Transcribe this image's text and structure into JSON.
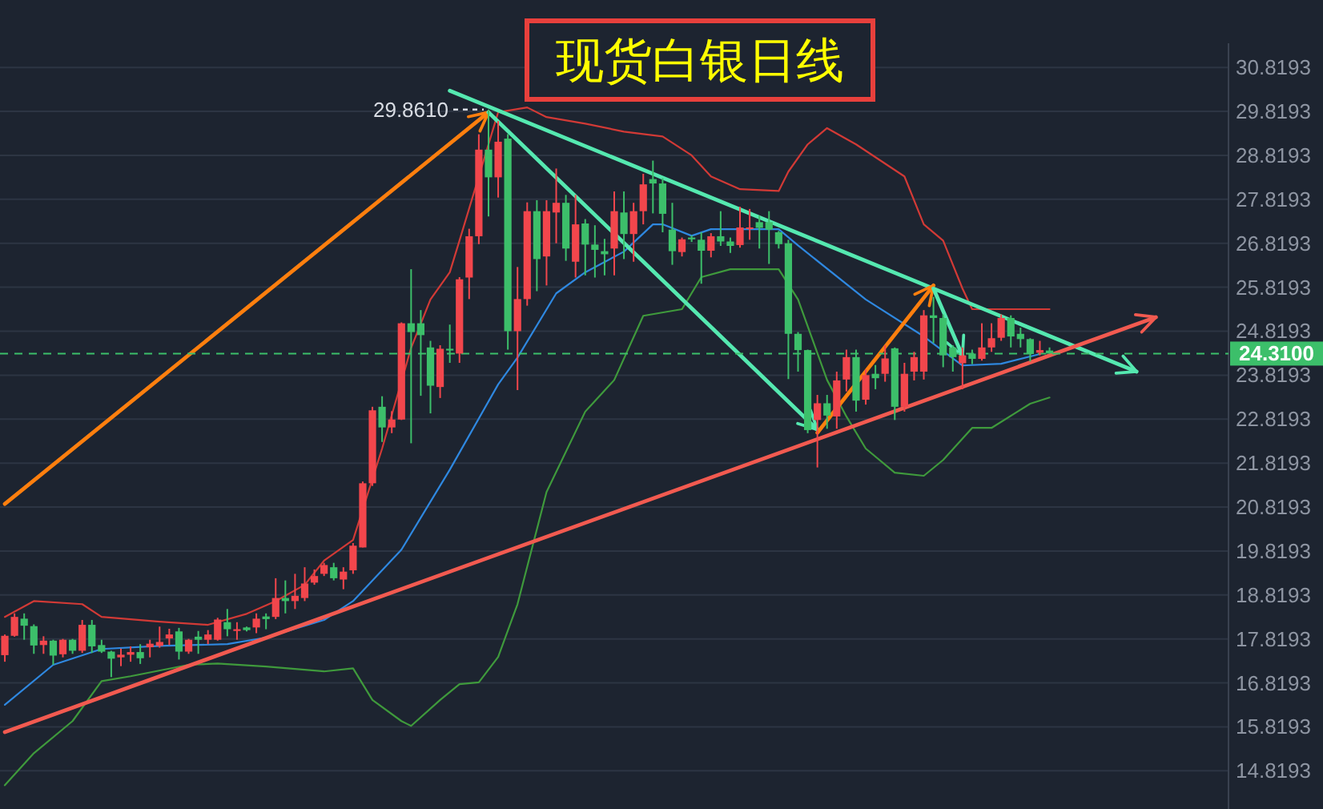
{
  "chart_data": {
    "type": "candlestick",
    "title": "现货白银日线",
    "categories": [
      null,
      null,
      null,
      null,
      null,
      null,
      null,
      null,
      null,
      null,
      null,
      null,
      null,
      null,
      null,
      null,
      null,
      null,
      null,
      null,
      null,
      null,
      null,
      null,
      null,
      null,
      null,
      null,
      null,
      null,
      null,
      null,
      null,
      null,
      null,
      null,
      null,
      null,
      null,
      null,
      null,
      null,
      null,
      null,
      null,
      null,
      null,
      null,
      null,
      null,
      null,
      null,
      null,
      null,
      null,
      null,
      null,
      null,
      null,
      null,
      null,
      null,
      null,
      null,
      null,
      null,
      null,
      null,
      null,
      null,
      null,
      null,
      null,
      null,
      null,
      null,
      null,
      null,
      null,
      null,
      null,
      null,
      null,
      null,
      null,
      null,
      null,
      null,
      null,
      null,
      null,
      null,
      null,
      null,
      null,
      null,
      null,
      null,
      null,
      null,
      null,
      null,
      null,
      null,
      null,
      null,
      null,
      null,
      null,
      null,
      null,
      null,
      null,
      null,
      null,
      null,
      null,
      null,
      null,
      null,
      null,
      null,
      null,
      null,
      null,
      null,
      null
    ],
    "ohlc": [
      [
        17.45,
        17.92,
        17.3,
        17.89
      ],
      [
        17.89,
        18.4,
        17.87,
        18.32
      ],
      [
        18.28,
        18.4,
        17.8,
        18.12
      ],
      [
        18.11,
        18.15,
        17.48,
        17.67
      ],
      [
        17.68,
        17.88,
        17.48,
        17.78
      ],
      [
        17.78,
        17.8,
        17.23,
        17.44
      ],
      [
        17.47,
        17.82,
        17.4,
        17.8
      ],
      [
        17.8,
        17.82,
        17.48,
        17.55
      ],
      [
        17.55,
        18.25,
        17.5,
        18.14
      ],
      [
        18.14,
        18.25,
        17.5,
        17.65
      ],
      [
        17.68,
        17.8,
        17.5,
        17.53
      ],
      [
        17.53,
        17.55,
        16.95,
        17.37
      ],
      [
        17.4,
        17.6,
        17.2,
        17.46
      ],
      [
        17.46,
        17.65,
        17.3,
        17.52
      ],
      [
        17.52,
        17.7,
        17.25,
        17.38
      ],
      [
        17.63,
        17.8,
        17.4,
        17.71
      ],
      [
        17.66,
        18.1,
        17.62,
        17.75
      ],
      [
        17.83,
        18.05,
        17.68,
        17.92
      ],
      [
        17.99,
        18.07,
        17.35,
        17.53
      ],
      [
        17.53,
        17.82,
        17.48,
        17.8
      ],
      [
        17.87,
        18.0,
        17.48,
        17.8
      ],
      [
        17.8,
        18.02,
        17.7,
        17.92
      ],
      [
        17.8,
        18.3,
        17.78,
        18.26
      ],
      [
        18.2,
        18.5,
        17.88,
        18.04
      ],
      [
        18.0,
        18.2,
        17.8,
        18.04
      ],
      [
        18.08,
        18.1,
        17.99,
        18.02
      ],
      [
        18.08,
        18.4,
        17.95,
        18.28
      ],
      [
        18.33,
        18.4,
        18.04,
        18.27
      ],
      [
        18.32,
        19.2,
        18.27,
        18.75
      ],
      [
        18.75,
        19.15,
        18.4,
        18.68
      ],
      [
        18.68,
        19.3,
        18.5,
        18.8
      ],
      [
        18.75,
        19.45,
        18.68,
        19.08
      ],
      [
        19.1,
        19.4,
        19.05,
        19.25
      ],
      [
        19.3,
        19.55,
        19.25,
        19.5
      ],
      [
        19.45,
        19.55,
        19.15,
        19.2
      ],
      [
        19.17,
        19.45,
        18.95,
        19.35
      ],
      [
        19.38,
        20.0,
        19.3,
        19.94
      ],
      [
        19.9,
        21.4,
        19.9,
        21.36
      ],
      [
        21.36,
        23.1,
        21.3,
        23.02
      ],
      [
        23.1,
        23.34,
        22.3,
        22.63
      ],
      [
        22.63,
        23.0,
        22.5,
        22.81
      ],
      [
        22.81,
        25.02,
        22.8,
        25.0
      ],
      [
        25.0,
        26.23,
        22.27,
        24.8
      ],
      [
        25.0,
        25.3,
        23.35,
        24.73
      ],
      [
        24.45,
        24.6,
        22.95,
        23.58
      ],
      [
        23.55,
        24.5,
        23.3,
        24.42
      ],
      [
        24.42,
        24.97,
        24.1,
        24.38
      ],
      [
        24.31,
        26.05,
        24.1,
        26.0
      ],
      [
        26.04,
        27.15,
        25.55,
        26.98
      ],
      [
        26.98,
        29.3,
        26.8,
        28.95
      ],
      [
        28.95,
        29.861,
        27.43,
        28.32
      ],
      [
        28.32,
        29.6,
        27.86,
        29.13
      ],
      [
        29.2,
        29.3,
        24.4,
        24.82
      ],
      [
        24.82,
        26.28,
        23.48,
        25.55
      ],
      [
        25.55,
        27.75,
        25.4,
        27.55
      ],
      [
        27.55,
        27.8,
        25.73,
        26.46
      ],
      [
        26.52,
        27.8,
        25.86,
        27.55
      ],
      [
        27.52,
        28.52,
        26.82,
        27.74
      ],
      [
        27.74,
        27.92,
        26.42,
        26.7
      ],
      [
        26.4,
        27.92,
        26.04,
        27.25
      ],
      [
        27.27,
        27.37,
        26.09,
        26.79
      ],
      [
        26.79,
        27.23,
        26.04,
        26.67
      ],
      [
        26.64,
        26.92,
        26.09,
        26.57
      ],
      [
        26.7,
        28.0,
        26.09,
        27.55
      ],
      [
        27.52,
        28.0,
        26.46,
        27.03
      ],
      [
        27.03,
        27.74,
        26.4,
        27.55
      ],
      [
        27.55,
        28.4,
        27.25,
        28.16
      ],
      [
        28.28,
        28.7,
        27.5,
        28.18
      ],
      [
        28.18,
        28.3,
        27.07,
        27.49
      ],
      [
        27.13,
        27.74,
        26.33,
        26.64
      ],
      [
        26.62,
        26.95,
        26.52,
        26.91
      ],
      [
        26.95,
        27.0,
        26.85,
        26.91
      ],
      [
        26.9,
        27.07,
        25.9,
        26.65
      ],
      [
        26.65,
        27.05,
        26.5,
        26.98
      ],
      [
        26.98,
        27.55,
        26.76,
        26.86
      ],
      [
        26.86,
        26.95,
        26.6,
        26.76
      ],
      [
        26.78,
        27.65,
        26.72,
        27.18
      ],
      [
        27.15,
        27.6,
        26.9,
        27.18
      ],
      [
        27.3,
        27.45,
        26.7,
        27.17
      ],
      [
        27.3,
        27.55,
        26.35,
        27.13
      ],
      [
        27.07,
        27.1,
        26.7,
        26.8
      ],
      [
        26.82,
        26.9,
        23.73,
        24.76
      ],
      [
        24.76,
        24.8,
        23.9,
        24.39
      ],
      [
        24.39,
        24.4,
        22.5,
        22.57
      ],
      [
        22.8,
        23.37,
        21.72,
        23.18
      ],
      [
        23.18,
        23.37,
        22.6,
        22.9
      ],
      [
        22.88,
        23.9,
        22.6,
        23.7
      ],
      [
        23.72,
        24.4,
        23.45,
        24.23
      ],
      [
        24.23,
        24.4,
        22.99,
        23.24
      ],
      [
        23.26,
        23.95,
        23.15,
        23.82
      ],
      [
        23.85,
        24.05,
        23.5,
        23.75
      ],
      [
        23.85,
        24.5,
        23.67,
        24.2
      ],
      [
        24.43,
        24.45,
        22.8,
        23.1
      ],
      [
        23.1,
        24.1,
        22.99,
        23.85
      ],
      [
        23.9,
        24.35,
        23.7,
        24.23
      ],
      [
        23.9,
        25.3,
        23.72,
        25.18
      ],
      [
        25.18,
        25.6,
        24.55,
        25.12
      ],
      [
        25.12,
        25.2,
        24.0,
        24.27
      ],
      [
        24.45,
        24.5,
        23.9,
        24.23
      ],
      [
        24.09,
        24.45,
        23.5,
        24.27
      ],
      [
        24.31,
        24.4,
        24.07,
        24.19
      ],
      [
        24.19,
        25.0,
        24.15,
        24.45
      ],
      [
        24.45,
        25.0,
        24.35,
        24.66
      ],
      [
        24.67,
        25.2,
        24.6,
        25.12
      ],
      [
        25.12,
        25.18,
        24.45,
        24.7
      ],
      [
        24.76,
        24.9,
        24.45,
        24.64
      ],
      [
        24.64,
        24.66,
        24.13,
        24.3
      ],
      [
        24.33,
        24.6,
        24.27,
        24.39
      ],
      [
        24.38,
        24.45,
        24.31,
        24.31
      ],
      null,
      null,
      null,
      null,
      null,
      null,
      null,
      null,
      null,
      null,
      null,
      null,
      null,
      null,
      null,
      null,
      null,
      null
    ],
    "colors": [
      "#f2464c",
      "#f2464c",
      "#3cbf6a",
      "#3cbf6a",
      "#f2464c",
      "#3cbf6a",
      "#f2464c",
      "#3cbf6a",
      "#f2464c",
      "#3cbf6a",
      "#3cbf6a",
      "#3cbf6a",
      "#f2464c",
      "#f2464c",
      "#3cbf6a",
      "#f2464c",
      "#f2464c",
      "#f2464c",
      "#3cbf6a",
      "#f2464c",
      "#3cbf6a",
      "#f2464c",
      "#f2464c",
      "#3cbf6a",
      "#f2464c",
      "#3cbf6a",
      "#f2464c",
      "#3cbf6a",
      "#f2464c",
      "#3cbf6a",
      "#f2464c",
      "#f2464c",
      "#f2464c",
      "#f2464c",
      "#3cbf6a",
      "#f2464c",
      "#f2464c",
      "#f2464c",
      "#f2464c",
      "#3cbf6a",
      "#f2464c",
      "#f2464c",
      "#3cbf6a",
      "#3cbf6a",
      "#3cbf6a",
      "#f2464c",
      "#3cbf6a",
      "#f2464c",
      "#f2464c",
      "#f2464c",
      "#3cbf6a",
      "#f2464c",
      "#3cbf6a",
      "#f2464c",
      "#f2464c",
      "#3cbf6a",
      "#f2464c",
      "#f2464c",
      "#3cbf6a",
      "#f2464c",
      "#3cbf6a",
      "#3cbf6a",
      "#3cbf6a",
      "#f2464c",
      "#3cbf6a",
      "#f2464c",
      "#f2464c",
      "#3cbf6a",
      "#3cbf6a",
      "#3cbf6a",
      "#f2464c",
      "#3cbf6a",
      "#3cbf6a",
      "#f2464c",
      "#3cbf6a",
      "#3cbf6a",
      "#f2464c",
      "#f2464c",
      "#3cbf6a",
      "#3cbf6a",
      "#3cbf6a",
      "#3cbf6a",
      "#3cbf6a",
      "#3cbf6a",
      "#f2464c",
      "#3cbf6a",
      "#f2464c",
      "#f2464c",
      "#3cbf6a",
      "#f2464c",
      "#3cbf6a",
      "#f2464c",
      "#3cbf6a",
      "#f2464c",
      "#f2464c",
      "#f2464c",
      "#3cbf6a",
      "#3cbf6a",
      "#3cbf6a",
      "#f2464c",
      "#3cbf6a",
      "#f2464c",
      "#f2464c",
      "#f2464c",
      "#3cbf6a",
      "#3cbf6a",
      "#3cbf6a",
      "#f2464c",
      "#3cbf6a",
      null,
      null,
      null,
      null,
      null,
      null,
      null,
      null,
      null,
      null,
      null,
      null,
      null,
      null,
      null,
      null,
      null,
      null
    ],
    "series": [
      {
        "type": "line",
        "color": "#d23a36",
        "values": [
          18.32,
          null,
          null,
          18.68,
          null,
          null,
          null,
          null,
          18.61,
          null,
          18.32,
          null,
          null,
          null,
          null,
          null,
          18.21,
          null,
          null,
          null,
          null,
          18.14,
          null,
          null,
          null,
          18.39,
          null,
          null,
          18.68,
          null,
          null,
          19.05,
          null,
          19.6,
          null,
          null,
          20.07,
          null,
          null,
          22.15,
          null,
          null,
          24.44,
          null,
          25.54,
          null,
          26.16,
          26.88,
          null,
          28.34,
          null,
          29.8,
          null,
          null,
          29.91,
          null,
          29.69,
          null,
          null,
          null,
          29.54,
          null,
          null,
          null,
          29.36,
          null,
          null,
          null,
          29.25,
          null,
          null,
          28.82,
          null,
          28.34,
          null,
          null,
          28.05,
          null,
          null,
          null,
          28.01,
          28.45,
          null,
          29.07,
          null,
          29.44,
          null,
          null,
          29.07,
          null,
          null,
          null,
          null,
          28.34,
          null,
          27.25,
          null,
          26.88,
          null,
          25.79,
          25.32,
          null,
          null,
          25.32,
          null,
          null,
          null,
          null,
          25.32,
          null,
          null,
          null,
          null,
          null,
          null,
          null,
          null,
          null,
          null,
          null,
          null,
          null,
          null,
          null,
          null,
          null,
          null
        ]
      },
      {
        "type": "line",
        "color": "#2f88e0",
        "values": [
          16.32,
          null,
          null,
          null,
          null,
          17.23,
          null,
          null,
          null,
          null,
          17.59,
          null,
          null,
          null,
          null,
          null,
          17.66,
          null,
          null,
          null,
          null,
          null,
          null,
          17.7,
          null,
          null,
          null,
          17.85,
          null,
          null,
          null,
          null,
          null,
          18.25,
          null,
          null,
          18.68,
          null,
          null,
          null,
          null,
          19.85,
          null,
          null,
          null,
          null,
          21.67,
          null,
          null,
          null,
          null,
          23.61,
          null,
          24.22,
          null,
          null,
          null,
          25.68,
          null,
          null,
          26.16,
          null,
          null,
          null,
          26.63,
          null,
          null,
          27.25,
          27.25,
          null,
          null,
          26.99,
          null,
          27.14,
          null,
          null,
          null,
          null,
          null,
          null,
          27.14,
          null,
          26.77,
          null,
          null,
          null,
          null,
          null,
          null,
          25.54,
          null,
          null,
          null,
          null,
          null,
          24.7,
          null,
          null,
          null,
          24.04,
          null,
          null,
          null,
          24.08,
          null,
          null,
          null,
          24.3,
          null,
          null,
          null,
          null,
          null,
          null,
          null,
          null,
          null,
          null,
          null,
          null,
          null,
          null,
          null,
          null,
          null,
          null,
          null
        ]
      },
      {
        "type": "line",
        "color": "#3f9a3c",
        "values": [
          14.49,
          null,
          null,
          15.22,
          null,
          null,
          null,
          15.95,
          null,
          null,
          16.86,
          null,
          null,
          16.97,
          null,
          null,
          null,
          null,
          null,
          17.23,
          null,
          null,
          17.26,
          null,
          null,
          null,
          null,
          17.19,
          null,
          null,
          null,
          null,
          null,
          17.08,
          null,
          null,
          17.15,
          null,
          16.43,
          null,
          null,
          15.95,
          15.84,
          null,
          null,
          16.43,
          null,
          16.79,
          null,
          16.83,
          null,
          17.41,
          null,
          18.61,
          null,
          null,
          21.16,
          null,
          null,
          null,
          22.99,
          null,
          null,
          23.71,
          null,
          null,
          25.17,
          null,
          null,
          null,
          25.32,
          null,
          26.05,
          null,
          null,
          26.23,
          null,
          null,
          null,
          null,
          26.23,
          null,
          25.54,
          null,
          null,
          23.71,
          null,
          22.88,
          null,
          22.15,
          null,
          null,
          21.6,
          null,
          null,
          21.53,
          null,
          21.89,
          null,
          null,
          22.62,
          null,
          22.62,
          null,
          null,
          null,
          23.17,
          null,
          23.31,
          null,
          null,
          null,
          null,
          null,
          null,
          null,
          null,
          null,
          null,
          null,
          null,
          null,
          null,
          null,
          null,
          null,
          null
        ]
      },
      {
        "type": "line",
        "color": "#ff7f0e",
        "values": [
          20.89,
          null,
          null,
          null,
          null,
          null,
          null,
          null,
          null,
          null,
          null,
          null,
          null,
          null,
          null,
          null,
          null,
          null,
          null,
          null,
          null,
          null,
          null,
          null,
          null,
          null,
          null,
          null,
          null,
          null,
          null,
          null,
          null,
          null,
          null,
          null,
          null,
          null,
          null,
          null,
          null,
          null,
          null,
          null,
          null,
          null,
          null,
          null,
          null,
          null,
          29.8,
          null,
          null,
          null,
          null,
          null,
          null,
          null,
          null,
          null,
          null,
          null,
          null,
          null,
          null,
          null,
          null,
          null,
          null,
          null,
          null,
          null,
          null,
          null,
          null,
          null,
          null,
          null,
          null,
          null,
          null,
          null,
          null,
          null,
          null,
          null,
          null,
          null,
          null,
          null,
          null,
          null,
          null,
          null,
          null,
          null,
          null,
          null,
          null,
          null,
          null,
          null,
          null,
          null,
          null,
          null,
          null,
          null,
          null,
          null,
          null,
          null,
          null,
          null,
          null,
          null,
          null,
          null,
          null,
          null,
          null,
          null,
          null,
          null,
          null,
          null,
          null
        ]
      },
      {
        "type": "line",
        "color": "#55e8b0",
        "values": [
          null,
          null,
          null,
          null,
          null,
          null,
          null,
          null,
          null,
          null,
          null,
          null,
          null,
          null,
          null,
          null,
          null,
          null,
          null,
          null,
          null,
          null,
          null,
          null,
          null,
          null,
          null,
          null,
          null,
          null,
          null,
          null,
          null,
          null,
          null,
          null,
          null,
          null,
          null,
          null,
          null,
          null,
          null,
          null,
          null,
          null,
          30.29,
          null,
          null,
          null,
          null,
          null,
          null,
          null,
          null,
          null,
          null,
          null,
          null,
          null,
          null,
          null,
          null,
          null,
          null,
          null,
          null,
          null,
          null,
          null,
          null,
          null,
          null,
          null,
          null,
          null,
          null,
          null,
          null,
          null,
          null,
          null,
          null,
          null,
          null,
          null,
          null,
          null,
          null,
          null,
          null,
          null,
          null,
          null,
          null,
          null,
          null,
          null,
          null,
          null,
          null,
          null,
          null,
          null,
          null,
          null,
          null,
          null,
          null,
          null,
          null,
          null,
          null,
          null,
          null,
          null,
          null,
          23.9,
          null,
          null,
          null,
          null,
          null,
          null,
          null,
          null,
          null
        ]
      },
      {
        "type": "line",
        "color": "#55e8b0",
        "values": [
          null,
          null,
          null,
          null,
          null,
          null,
          null,
          null,
          null,
          null,
          null,
          null,
          null,
          null,
          null,
          null,
          null,
          null,
          null,
          null,
          null,
          null,
          null,
          null,
          null,
          null,
          null,
          null,
          null,
          null,
          null,
          null,
          null,
          null,
          null,
          null,
          null,
          null,
          null,
          null,
          null,
          null,
          null,
          null,
          null,
          null,
          null,
          null,
          null,
          null,
          29.8,
          null,
          null,
          null,
          null,
          null,
          null,
          null,
          null,
          null,
          null,
          null,
          null,
          null,
          null,
          null,
          null,
          null,
          null,
          null,
          null,
          null,
          null,
          null,
          null,
          null,
          null,
          null,
          null,
          null,
          null,
          null,
          null,
          null,
          22.58,
          null,
          null,
          null,
          null,
          null,
          null,
          null,
          null,
          null,
          null,
          null,
          null,
          null,
          null,
          null,
          null,
          null,
          null,
          null,
          null,
          null,
          null,
          null,
          null,
          null,
          null,
          null,
          null,
          null,
          null,
          null,
          null,
          null,
          null,
          null,
          null,
          null,
          null,
          null,
          null,
          null,
          null
        ]
      },
      {
        "type": "line",
        "color": "#f25a50",
        "values": [
          15.7,
          null,
          null,
          null,
          null,
          null,
          null,
          null,
          null,
          null,
          null,
          null,
          null,
          null,
          null,
          null,
          null,
          null,
          null,
          null,
          null,
          null,
          null,
          null,
          null,
          null,
          null,
          null,
          null,
          null,
          null,
          null,
          null,
          null,
          null,
          null,
          null,
          null,
          null,
          null,
          null,
          null,
          null,
          null,
          null,
          null,
          null,
          null,
          null,
          null,
          null,
          null,
          null,
          null,
          null,
          null,
          null,
          null,
          null,
          null,
          null,
          null,
          null,
          null,
          null,
          null,
          null,
          null,
          null,
          null,
          null,
          null,
          null,
          null,
          null,
          null,
          null,
          null,
          null,
          null,
          null,
          null,
          null,
          null,
          null,
          null,
          null,
          null,
          null,
          null,
          null,
          null,
          null,
          null,
          null,
          null,
          null,
          null,
          null,
          null,
          null,
          null,
          null,
          null,
          null,
          null,
          null,
          null,
          null,
          null,
          null,
          null,
          null,
          null,
          null,
          null,
          null,
          null,
          null,
          25.14,
          null,
          null,
          null,
          null,
          null,
          null,
          null
        ]
      },
      {
        "type": "line",
        "color": "#ff7f0e",
        "values": [
          null,
          null,
          null,
          null,
          null,
          null,
          null,
          null,
          null,
          null,
          null,
          null,
          null,
          null,
          null,
          null,
          null,
          null,
          null,
          null,
          null,
          null,
          null,
          null,
          null,
          null,
          null,
          null,
          null,
          null,
          null,
          null,
          null,
          null,
          null,
          null,
          null,
          null,
          null,
          null,
          null,
          null,
          null,
          null,
          null,
          null,
          null,
          null,
          null,
          null,
          null,
          null,
          null,
          null,
          null,
          null,
          null,
          null,
          null,
          null,
          null,
          null,
          null,
          null,
          null,
          null,
          null,
          null,
          null,
          null,
          null,
          null,
          null,
          null,
          null,
          null,
          null,
          null,
          null,
          null,
          null,
          null,
          null,
          null,
          22.51,
          null,
          null,
          null,
          null,
          null,
          null,
          null,
          null,
          null,
          null,
          null,
          25.86,
          null,
          null,
          null,
          null,
          null,
          null,
          null,
          null,
          null,
          null,
          null,
          null,
          null,
          null,
          null,
          null,
          null,
          null,
          null,
          null,
          null,
          null,
          null,
          null,
          null,
          null,
          null,
          null,
          null,
          null
        ]
      },
      {
        "type": "line",
        "color": "#55e8b0",
        "values": [
          null,
          null,
          null,
          null,
          null,
          null,
          null,
          null,
          null,
          null,
          null,
          null,
          null,
          null,
          null,
          null,
          null,
          null,
          null,
          null,
          null,
          null,
          null,
          null,
          null,
          null,
          null,
          null,
          null,
          null,
          null,
          null,
          null,
          null,
          null,
          null,
          null,
          null,
          null,
          null,
          null,
          null,
          null,
          null,
          null,
          null,
          null,
          null,
          null,
          null,
          null,
          null,
          null,
          null,
          null,
          null,
          null,
          null,
          null,
          null,
          null,
          null,
          null,
          null,
          null,
          null,
          null,
          null,
          null,
          null,
          null,
          null,
          null,
          null,
          null,
          null,
          null,
          null,
          null,
          null,
          null,
          null,
          null,
          null,
          null,
          null,
          null,
          null,
          null,
          null,
          null,
          null,
          null,
          null,
          null,
          null,
          25.79,
          null,
          null,
          24.26,
          null,
          null,
          null,
          null,
          null,
          null,
          null,
          null,
          null,
          null,
          null,
          null,
          null,
          null,
          null,
          null,
          null,
          null,
          null,
          null,
          null,
          null,
          null,
          null,
          null,
          null,
          null
        ]
      }
    ],
    "ylim": [
      13.95,
      31.37
    ],
    "yticks": [
      14.8193,
      15.8193,
      16.8193,
      17.8193,
      18.8193,
      19.8193,
      20.8193,
      21.8193,
      22.8193,
      23.8193,
      24.8193,
      25.8193,
      26.8193,
      27.8193,
      28.8193,
      29.8193,
      30.8193
    ],
    "grid": "y",
    "ref_lines": [
      {
        "axis": "y",
        "value": 24.31,
        "label": "24.3100",
        "color": "#3cbf6a",
        "line_style": "dashed"
      }
    ],
    "annotations": [
      "29.8610"
    ]
  }
}
